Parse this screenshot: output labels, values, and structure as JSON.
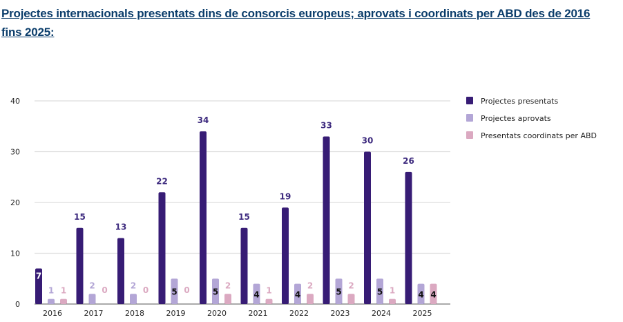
{
  "page": {
    "title": "Projectes internacionals presentats dins de consorcis europeus; aprovats i coordinats per ABD des de 2016 fins 2025:"
  },
  "chart_data": {
    "type": "bar",
    "title": "",
    "xlabel": "",
    "ylabel": "",
    "ylim": [
      0,
      40
    ],
    "yticks": [
      0,
      10,
      20,
      30,
      40
    ],
    "grid": true,
    "legend_position": "right",
    "categories": [
      "2016",
      "2017",
      "2018",
      "2019",
      "2020",
      "2021",
      "2022",
      "2023",
      "2024",
      "2025"
    ],
    "series": [
      {
        "name": "Projectes presentats",
        "color": "#371c75",
        "label_color": "#3d2a7e",
        "values": [
          7,
          15,
          13,
          22,
          34,
          15,
          19,
          33,
          30,
          26
        ]
      },
      {
        "name": "Projectes aprovats",
        "color": "#b3a6d6",
        "label_color": "#b3a6d6",
        "values": [
          1,
          2,
          2,
          5,
          5,
          4,
          4,
          5,
          5,
          4
        ]
      },
      {
        "name": "Presentats coordinats per ABD",
        "color": "#dba9c1",
        "label_color": "#dba9c1",
        "values": [
          1,
          0,
          0,
          0,
          2,
          1,
          2,
          2,
          1,
          4
        ]
      }
    ]
  }
}
